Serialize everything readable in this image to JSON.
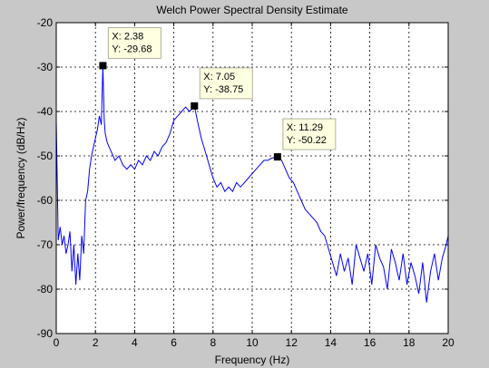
{
  "chart_data": {
    "type": "line",
    "title": "Welch Power Spectral Density Estimate",
    "xlabel": "Frequency (Hz)",
    "ylabel": "Power/frequency (dB/Hz)",
    "xlim": [
      0,
      20
    ],
    "ylim": [
      -90,
      -20
    ],
    "xticks": [
      0,
      2,
      4,
      6,
      8,
      10,
      12,
      14,
      16,
      18,
      20
    ],
    "yticks": [
      -90,
      -80,
      -70,
      -60,
      -50,
      -40,
      -30,
      -20
    ],
    "xtick_labels": [
      "0",
      "2",
      "4",
      "6",
      "8",
      "10",
      "12",
      "14",
      "16",
      "18",
      "20"
    ],
    "ytick_labels": [
      "-90",
      "-80",
      "-70",
      "-60",
      "-50",
      "-40",
      "-30",
      "-20"
    ],
    "grid": true,
    "line_color": "#0000ff",
    "background": "#c8c8c8",
    "plot_background": "#ffffff",
    "series": [
      {
        "x": [
          0,
          0.1,
          0.2,
          0.3,
          0.4,
          0.5,
          0.6,
          0.7,
          0.8,
          0.9,
          1.0,
          1.1,
          1.2,
          1.3,
          1.4,
          1.5,
          1.6,
          1.7,
          1.8,
          1.9,
          2.0,
          2.1,
          2.2,
          2.3,
          2.38,
          2.45,
          2.5,
          2.6,
          2.7,
          2.8,
          3.0,
          3.2,
          3.4,
          3.6,
          3.8,
          4.0,
          4.2,
          4.4,
          4.6,
          4.8,
          5.0,
          5.2,
          5.4,
          5.6,
          5.8,
          6.0,
          6.2,
          6.4,
          6.6,
          6.8,
          7.05,
          7.2,
          7.4,
          7.6,
          7.8,
          8.0,
          8.2,
          8.4,
          8.6,
          8.8,
          9.0,
          9.2,
          9.4,
          9.6,
          9.8,
          10.0,
          10.2,
          10.4,
          10.6,
          10.8,
          11.0,
          11.29,
          11.5,
          11.7,
          11.9,
          12.1,
          12.3,
          12.5,
          12.7,
          12.9,
          13.1,
          13.3,
          13.5,
          13.7,
          13.9,
          14.1,
          14.3,
          14.5,
          14.7,
          14.9,
          15.1,
          15.3,
          15.5,
          15.7,
          15.9,
          16.1,
          16.3,
          16.5,
          16.7,
          16.9,
          17.1,
          17.3,
          17.5,
          17.7,
          17.9,
          18.1,
          18.3,
          18.5,
          18.7,
          18.9,
          19.1,
          19.3,
          19.5,
          19.7,
          19.9,
          20.0
        ],
        "y": [
          -42,
          -69,
          -66,
          -70,
          -68,
          -72,
          -70,
          -67,
          -76,
          -70,
          -79,
          -72,
          -78,
          -68,
          -72,
          -60,
          -58,
          -53,
          -50,
          -48,
          -46,
          -44,
          -41,
          -43,
          -29.68,
          -42,
          -45,
          -47,
          -48,
          -49,
          -51,
          -50,
          -52,
          -53,
          -52,
          -53,
          -51,
          -52,
          -50,
          -51,
          -49,
          -50,
          -48,
          -47,
          -45,
          -42,
          -41,
          -40,
          -39,
          -40,
          -38.75,
          -42,
          -46,
          -49,
          -52,
          -55,
          -57,
          -56,
          -58,
          -57,
          -58,
          -56,
          -57,
          -56,
          -55,
          -54,
          -53,
          -52,
          -51,
          -51,
          -50.5,
          -50.22,
          -51,
          -53,
          -55,
          -56,
          -58,
          -60,
          -62,
          -63,
          -64,
          -65,
          -67,
          -68,
          -71,
          -74,
          -77,
          -72,
          -76,
          -73,
          -79,
          -70,
          -73,
          -76,
          -72,
          -79,
          -70,
          -73,
          -75,
          -80,
          -71,
          -74,
          -78,
          -72,
          -79,
          -74,
          -77,
          -81,
          -74,
          -83,
          -76,
          -72,
          -78,
          -73,
          -70,
          -68
        ]
      }
    ],
    "annotations": [
      {
        "x": 2.38,
        "y": -29.68,
        "text_x": "X: 2.38",
        "text_y": "Y: -29.68"
      },
      {
        "x": 7.05,
        "y": -38.75,
        "text_x": "X: 7.05",
        "text_y": "Y: -38.75"
      },
      {
        "x": 11.29,
        "y": -50.22,
        "text_x": "X: 11.29",
        "text_y": "Y: -50.22"
      }
    ]
  }
}
